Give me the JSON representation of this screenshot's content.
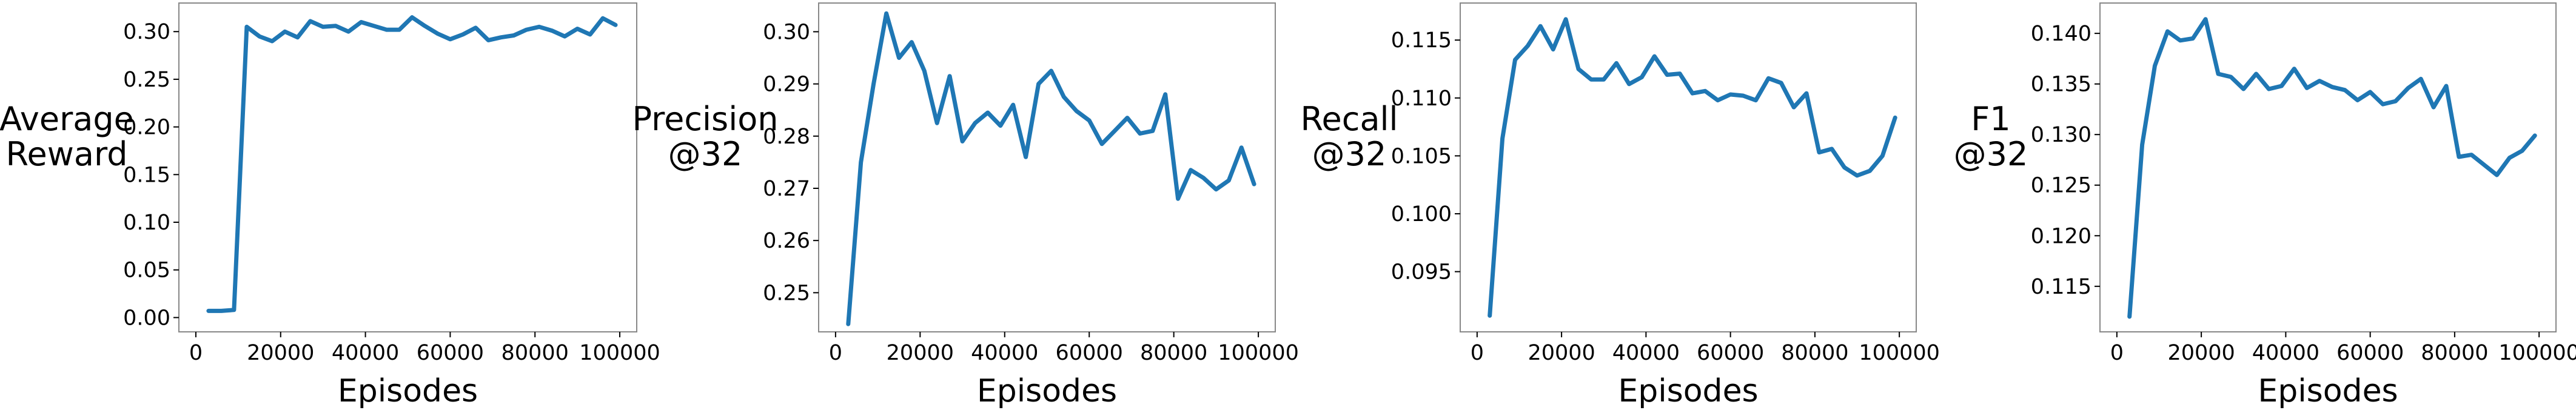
{
  "chart_data": [
    {
      "type": "line",
      "ylabel": [
        "Average",
        "Reward"
      ],
      "xlabel": "Episodes",
      "xlim": [
        -4000,
        104000
      ],
      "ylim": [
        -0.015,
        0.33
      ],
      "xticks": [
        0,
        20000,
        40000,
        60000,
        80000,
        100000
      ],
      "yticks": [
        0.0,
        0.05,
        0.1,
        0.15,
        0.2,
        0.25,
        0.3
      ],
      "ytick_labels": [
        "0.00",
        "0.05",
        "0.10",
        "0.15",
        "0.20",
        "0.25",
        "0.30"
      ],
      "color": "#1f77b4",
      "x": [
        3000,
        6000,
        9000,
        12000,
        15000,
        18000,
        21000,
        24000,
        27000,
        30000,
        33000,
        36000,
        39000,
        42000,
        45000,
        48000,
        51000,
        54000,
        57000,
        60000,
        63000,
        66000,
        69000,
        72000,
        75000,
        78000,
        81000,
        84000,
        87000,
        90000,
        93000,
        96000,
        99000
      ],
      "y": [
        0.007,
        0.007,
        0.008,
        0.305,
        0.295,
        0.29,
        0.3,
        0.294,
        0.311,
        0.305,
        0.306,
        0.3,
        0.31,
        0.306,
        0.302,
        0.302,
        0.315,
        0.306,
        0.298,
        0.292,
        0.297,
        0.304,
        0.291,
        0.294,
        0.296,
        0.302,
        0.305,
        0.301,
        0.295,
        0.303,
        0.297,
        0.314,
        0.307
      ]
    },
    {
      "type": "line",
      "ylabel": [
        "Precision",
        "@32"
      ],
      "xlabel": "Episodes",
      "xlim": [
        -4000,
        104000
      ],
      "ylim": [
        0.2425,
        0.3055
      ],
      "xticks": [
        0,
        20000,
        40000,
        60000,
        80000,
        100000
      ],
      "yticks": [
        0.25,
        0.26,
        0.27,
        0.28,
        0.29,
        0.3
      ],
      "ytick_labels": [
        "0.25",
        "0.26",
        "0.27",
        "0.28",
        "0.29",
        "0.30"
      ],
      "color": "#1f77b4",
      "x": [
        3000,
        6000,
        9000,
        12000,
        15000,
        18000,
        21000,
        24000,
        27000,
        30000,
        33000,
        36000,
        39000,
        42000,
        45000,
        48000,
        51000,
        54000,
        57000,
        60000,
        63000,
        66000,
        69000,
        72000,
        75000,
        78000,
        81000,
        84000,
        87000,
        90000,
        93000,
        96000,
        99000
      ],
      "y": [
        0.244,
        0.275,
        0.29,
        0.3035,
        0.295,
        0.298,
        0.2925,
        0.2825,
        0.2915,
        0.279,
        0.2825,
        0.2845,
        0.282,
        0.286,
        0.276,
        0.29,
        0.2925,
        0.2875,
        0.2848,
        0.283,
        0.2785,
        0.281,
        0.2835,
        0.2805,
        0.281,
        0.288,
        0.268,
        0.2735,
        0.272,
        0.2698,
        0.2715,
        0.2778,
        0.2708
      ]
    },
    {
      "type": "line",
      "ylabel": [
        "Recall",
        "@32"
      ],
      "xlabel": "Episodes",
      "xlim": [
        -4000,
        104000
      ],
      "ylim": [
        0.0898,
        0.1182
      ],
      "xticks": [
        0,
        20000,
        40000,
        60000,
        80000,
        100000
      ],
      "yticks": [
        0.095,
        0.1,
        0.105,
        0.11,
        0.115
      ],
      "ytick_labels": [
        "0.095",
        "0.100",
        "0.105",
        "0.110",
        "0.115"
      ],
      "color": "#1f77b4",
      "x": [
        3000,
        6000,
        9000,
        12000,
        15000,
        18000,
        21000,
        24000,
        27000,
        30000,
        33000,
        36000,
        39000,
        42000,
        45000,
        48000,
        51000,
        54000,
        57000,
        60000,
        63000,
        66000,
        69000,
        72000,
        75000,
        78000,
        81000,
        84000,
        87000,
        90000,
        93000,
        96000,
        99000
      ],
      "y": [
        0.0912,
        0.1065,
        0.1133,
        0.1145,
        0.1162,
        0.1142,
        0.1168,
        0.1125,
        0.1116,
        0.1116,
        0.113,
        0.1112,
        0.1118,
        0.1136,
        0.112,
        0.1121,
        0.1104,
        0.1106,
        0.1098,
        0.1103,
        0.1102,
        0.1098,
        0.1117,
        0.1113,
        0.1092,
        0.1104,
        0.1053,
        0.1056,
        0.104,
        0.1033,
        0.1037,
        0.105,
        0.1083
      ]
    },
    {
      "type": "line",
      "ylabel": [
        "F1",
        "@32"
      ],
      "xlabel": "Episodes",
      "xlim": [
        -4000,
        104000
      ],
      "ylim": [
        0.1105,
        0.143
      ],
      "xticks": [
        0,
        20000,
        40000,
        60000,
        80000,
        100000
      ],
      "yticks": [
        0.115,
        0.12,
        0.125,
        0.13,
        0.135,
        0.14
      ],
      "ytick_labels": [
        "0.115",
        "0.120",
        "0.125",
        "0.130",
        "0.135",
        "0.140"
      ],
      "color": "#1f77b4",
      "x": [
        3000,
        6000,
        9000,
        12000,
        15000,
        18000,
        21000,
        24000,
        27000,
        30000,
        33000,
        36000,
        39000,
        42000,
        45000,
        48000,
        51000,
        54000,
        57000,
        60000,
        63000,
        66000,
        69000,
        72000,
        75000,
        78000,
        81000,
        84000,
        87000,
        90000,
        93000,
        96000,
        99000
      ],
      "y": [
        0.112,
        0.129,
        0.1368,
        0.1402,
        0.1393,
        0.1395,
        0.1414,
        0.136,
        0.1357,
        0.1345,
        0.136,
        0.1345,
        0.1348,
        0.1365,
        0.1346,
        0.1353,
        0.1347,
        0.1344,
        0.1334,
        0.1342,
        0.133,
        0.1333,
        0.1346,
        0.1355,
        0.1327,
        0.1348,
        0.1278,
        0.128,
        0.127,
        0.126,
        0.1277,
        0.1284,
        0.1299
      ]
    }
  ]
}
